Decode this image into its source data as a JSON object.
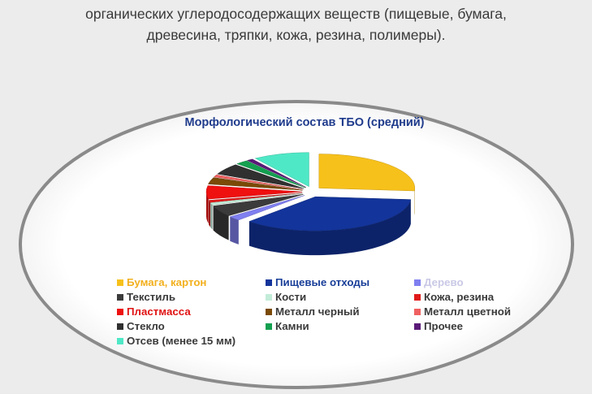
{
  "intro": {
    "line1": "органических углеродосодержащих веществ (пищевые, бумага,",
    "line2": "древесина, тряпки, кожа, резина, полимеры)."
  },
  "chart_data": {
    "type": "pie",
    "title": "Морфологический состав ТБО (средний)",
    "title_color": "#1f3b8c",
    "style": "3d-exploded",
    "units": "%",
    "legend_position": "bottom",
    "slices": [
      {
        "label": "Бумага, картон",
        "value": 25,
        "color": "#f7c11b",
        "label_color": "#f2b01e"
      },
      {
        "label": "Пищевые отходы",
        "value": 34,
        "color": "#13349a",
        "label_color": "#1a3f99"
      },
      {
        "label": "Дерево",
        "value": 2,
        "color": "#7f7ff0",
        "label_color": "#c9c9e6"
      },
      {
        "label": "Текстиль",
        "value": 5,
        "color": "#3b3b3b",
        "label_color": "#3a3a3a"
      },
      {
        "label": "Кости",
        "value": 1,
        "color": "#c2ecd8",
        "label_color": "#3a3a3a"
      },
      {
        "label": "Кожа, резина",
        "value": 1,
        "color": "#e01a1a",
        "label_color": "#3a3a3a"
      },
      {
        "label": "Пластмасса",
        "value": 6,
        "color": "#ef1010",
        "label_color": "#e01212"
      },
      {
        "label": "Металл черный",
        "value": 3,
        "color": "#7a4a06",
        "label_color": "#3a3a3a"
      },
      {
        "label": "Металл цветной",
        "value": 1,
        "color": "#f06060",
        "label_color": "#3a3a3a"
      },
      {
        "label": "Стекло",
        "value": 5,
        "color": "#303030",
        "label_color": "#3a3a3a"
      },
      {
        "label": "Камни",
        "value": 2,
        "color": "#14a050",
        "label_color": "#3a3a3a"
      },
      {
        "label": "Прочее",
        "value": 1,
        "color": "#5a1a78",
        "label_color": "#3a3a3a"
      },
      {
        "label": "Отсев (менее 15 мм)",
        "value": 9,
        "color": "#4fe8c6",
        "label_color": "#3a3a3a"
      }
    ]
  }
}
